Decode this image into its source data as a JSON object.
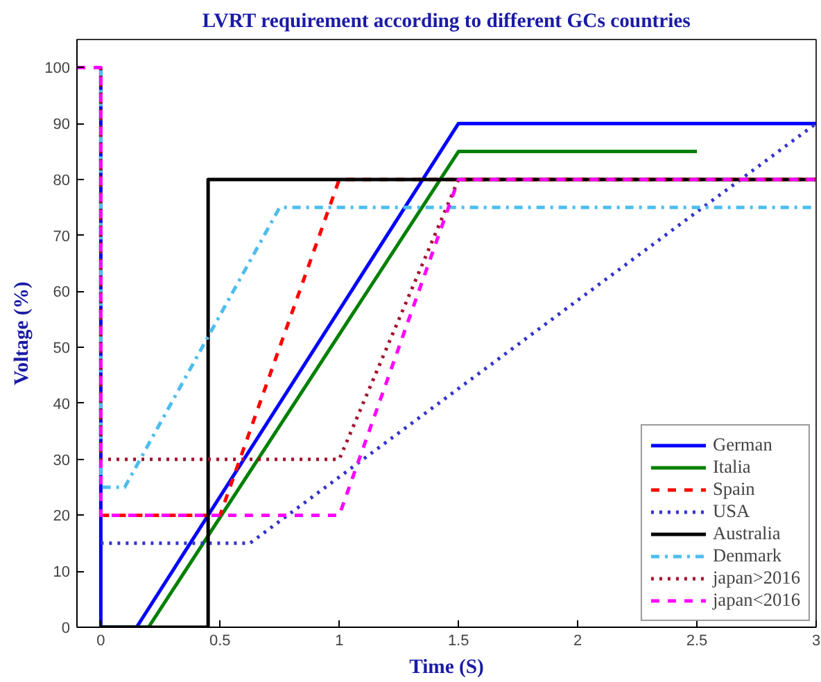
{
  "chart_data": {
    "type": "line",
    "title": "LVRT requirement according to different GCs countries",
    "xlabel": "Time (S)",
    "ylabel": "Voltage (%)",
    "xlim": [
      -0.1,
      3
    ],
    "ylim": [
      0,
      105
    ],
    "xticks": [
      0,
      0.5,
      1,
      1.5,
      2,
      2.5,
      3
    ],
    "yticks": [
      0,
      10,
      20,
      30,
      40,
      50,
      60,
      70,
      80,
      90,
      100
    ],
    "grid": false,
    "legend": "bottom right",
    "marker": "none",
    "series": [
      {
        "name": "German",
        "color": "#0000ff",
        "line_style": "solid",
        "x": [
          0,
          0,
          0.15,
          1.5,
          3
        ],
        "values": [
          100,
          0,
          0,
          90,
          90
        ]
      },
      {
        "name": "Italia",
        "color": "#008000",
        "line_style": "solid",
        "x": [
          0,
          0.2,
          1.5,
          2.5
        ],
        "values": [
          0,
          0,
          85,
          85
        ]
      },
      {
        "name": "Spain",
        "color": "#ff0000",
        "line_style": "dashed",
        "x": [
          0,
          0.5,
          1,
          3
        ],
        "values": [
          20,
          20,
          80,
          80
        ]
      },
      {
        "name": "USA",
        "color": "#3333cc",
        "line_style": "dotted",
        "x": [
          0,
          0.625,
          3
        ],
        "values": [
          15,
          15,
          90
        ]
      },
      {
        "name": "Australia",
        "color": "#000000",
        "line_style": "solid",
        "x": [
          0,
          0.45,
          0.45,
          3
        ],
        "values": [
          0,
          0,
          80,
          80
        ]
      },
      {
        "name": "Denmark",
        "color": "#4dbeee",
        "line_style": "dashdot",
        "x": [
          0,
          0,
          0.1,
          0.75,
          3
        ],
        "values": [
          100,
          25,
          25,
          75,
          75
        ]
      },
      {
        "name": "japan>2016",
        "color": "#a2142f",
        "line_style": "dotted",
        "x": [
          0,
          0,
          1,
          1.5,
          3
        ],
        "values": [
          100,
          30,
          30,
          80,
          80
        ]
      },
      {
        "name": "japan<2016",
        "color": "#ff00ff",
        "line_style": "dashed",
        "x": [
          -0.1,
          0,
          0,
          1,
          1.5,
          3
        ],
        "values": [
          100,
          100,
          20,
          20,
          80,
          80
        ]
      }
    ]
  }
}
